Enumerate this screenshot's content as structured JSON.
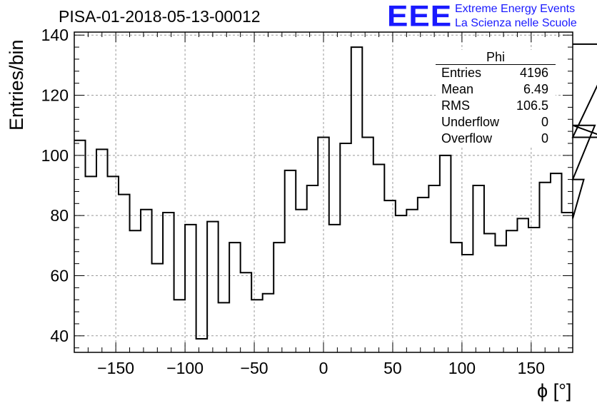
{
  "chart_data": {
    "type": "histogram",
    "title": "PISA-01-2018-05-13-00012",
    "xlabel": "ϕ [°]",
    "ylabel": "Entries/bin",
    "xlim": [
      -180,
      180
    ],
    "ylim": [
      34.5,
      141
    ],
    "xticks": [
      -150,
      -100,
      -50,
      0,
      50,
      100,
      150
    ],
    "xtick_labels": [
      "−150",
      "−100",
      "−50",
      "0",
      "50",
      "100",
      "150"
    ],
    "yticks": [
      40,
      60,
      80,
      100,
      120,
      140
    ],
    "ytick_labels": [
      "40",
      "60",
      "80",
      "100",
      "120",
      "140"
    ],
    "grid": true,
    "bin_width": 8,
    "bin_edges_start": -180,
    "values": [
      105,
      93,
      102,
      93,
      87,
      75,
      82,
      64,
      81,
      52,
      77,
      39,
      78,
      51,
      71,
      61,
      52,
      54,
      71,
      95,
      82,
      90,
      106,
      77,
      104,
      136,
      106,
      97,
      85,
      80,
      82,
      86,
      90,
      100,
      71,
      67,
      90,
      74,
      70,
      75,
      79,
      76,
      91,
      94,
      81,
      79,
      92,
      110,
      106,
      137
    ],
    "stats": {
      "title": "Phi",
      "rows": [
        {
          "label": "Entries",
          "value": "4196"
        },
        {
          "label": "Mean",
          "value": "6.49"
        },
        {
          "label": "RMS",
          "value": "106.5"
        },
        {
          "label": "Underflow",
          "value": "0"
        },
        {
          "label": "Overflow",
          "value": "0"
        }
      ]
    },
    "line_color": "#000000",
    "grid_color": "#999999"
  },
  "logo": {
    "mark": "EEE",
    "line1": "Extreme Energy Events",
    "line2": "La Scienza nelle Scuole",
    "color": "#1a1aff"
  }
}
